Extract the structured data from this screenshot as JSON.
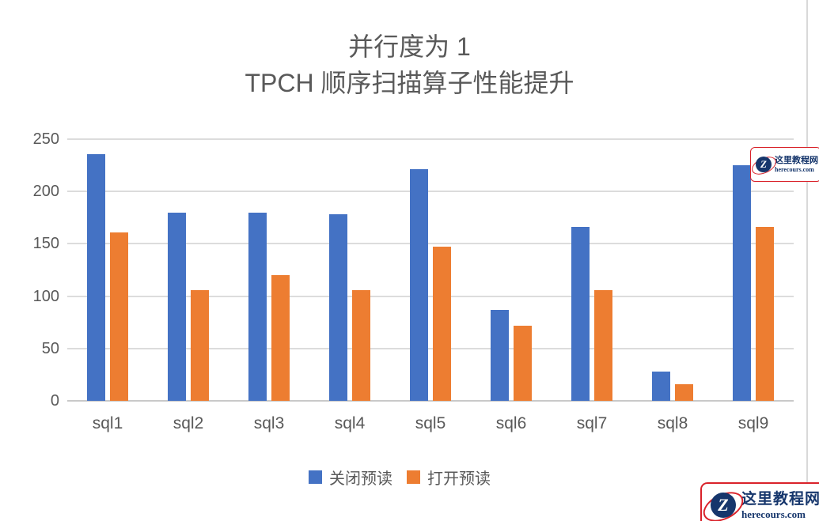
{
  "chart_data": {
    "type": "bar",
    "title_lines": [
      "并行度为 1",
      "TPCH 顺序扫描算子性能提升"
    ],
    "categories": [
      "sql1",
      "sql2",
      "sql3",
      "sql4",
      "sql5",
      "sql6",
      "sql7",
      "sql8",
      "sql9"
    ],
    "series": [
      {
        "name": "关闭预读",
        "color": "#4472C4",
        "values": [
          236,
          180,
          180,
          178,
          221,
          87,
          166,
          28,
          225
        ]
      },
      {
        "name": "打开预读",
        "color": "#ED7D31",
        "values": [
          161,
          106,
          120,
          106,
          147,
          72,
          106,
          16,
          166
        ]
      }
    ],
    "ylim": [
      0,
      250
    ],
    "yticks": [
      0,
      50,
      100,
      150,
      200,
      250
    ],
    "grid": true,
    "legend_position": "bottom",
    "xlabel": "",
    "ylabel": "",
    "text_color": "#595959",
    "grid_color": "#dcdcdc"
  },
  "watermarks": {
    "top_right": {
      "title": "这里教程网",
      "subtitle": "herecours.com",
      "logo_letter": "Z"
    },
    "bottom_right": {
      "title": "这里教程网",
      "subtitle": "herecours.com",
      "logo_letter": "Z"
    }
  }
}
